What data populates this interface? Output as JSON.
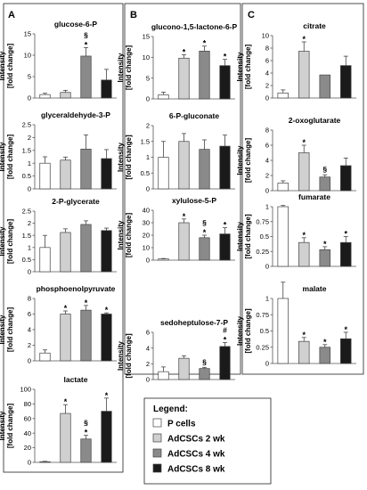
{
  "panels": [
    {
      "label": "A"
    },
    {
      "label": "B"
    },
    {
      "label": "C"
    }
  ],
  "ylabel_line1": "Intensity",
  "ylabel_line2": "[fold change]",
  "legend": {
    "title": "Legend:",
    "items": [
      {
        "label": "P cells",
        "color": "#ffffff"
      },
      {
        "label": "AdCSCs 2 wk",
        "color": "#d0d0d0"
      },
      {
        "label": "AdCSCs 4 wk",
        "color": "#8a8a8a"
      },
      {
        "label": "AdCSCs 8 wk",
        "color": "#1a1a1a"
      }
    ]
  },
  "chart_data": [
    {
      "type": "bar",
      "panel": "A",
      "title": "glucose-6-P",
      "ylim": [
        0,
        15
      ],
      "yticks": [
        0,
        5,
        10,
        15
      ],
      "values": [
        0.8,
        1.3,
        9.8,
        4.2
      ],
      "errors": [
        0.3,
        0.5,
        2.0,
        2.5
      ],
      "marks": [
        "",
        "",
        "§\n*",
        ""
      ]
    },
    {
      "type": "bar",
      "panel": "A",
      "title": "glyceraldehyde-3-P",
      "ylim": [
        0,
        2.5
      ],
      "yticks": [
        0,
        0.5,
        1,
        1.5,
        2,
        2.5
      ],
      "values": [
        1.0,
        1.12,
        1.55,
        1.18
      ],
      "errors": [
        0.25,
        0.12,
        0.55,
        0.35
      ],
      "marks": [
        "",
        "",
        "",
        ""
      ]
    },
    {
      "type": "bar",
      "panel": "A",
      "title": "2-P-glycerate",
      "ylim": [
        0,
        2.5
      ],
      "yticks": [
        0,
        0.5,
        1,
        1.5,
        2,
        2.5
      ],
      "values": [
        1.0,
        1.62,
        1.95,
        1.7
      ],
      "errors": [
        0.5,
        0.15,
        0.15,
        0.1
      ],
      "marks": [
        "",
        "",
        "",
        ""
      ]
    },
    {
      "type": "bar",
      "panel": "A",
      "title": "phosphoenolpyruvate",
      "ylim": [
        0,
        8
      ],
      "yticks": [
        0,
        2,
        4,
        6,
        8
      ],
      "values": [
        1.0,
        6.0,
        6.5,
        6.0
      ],
      "errors": [
        0.4,
        0.4,
        0.6,
        0.15
      ],
      "marks": [
        "",
        "*",
        "*",
        "*"
      ]
    },
    {
      "type": "bar",
      "panel": "A",
      "title": "lactate",
      "ylim": [
        0,
        100
      ],
      "yticks": [
        0,
        20,
        40,
        60,
        80,
        100
      ],
      "values": [
        1,
        67,
        32,
        70
      ],
      "errors": [
        0.5,
        12,
        5,
        18
      ],
      "marks": [
        "",
        "*",
        "§\n*",
        "*"
      ]
    },
    {
      "type": "bar",
      "panel": "B",
      "title": "glucono-1,5-lactone-6-P",
      "ylim": [
        0,
        15
      ],
      "yticks": [
        0,
        5,
        10,
        15
      ],
      "values": [
        1.0,
        9.8,
        11.5,
        8.0
      ],
      "errors": [
        0.6,
        0.8,
        1.2,
        1.5
      ],
      "marks": [
        "",
        "*",
        "*",
        "*"
      ]
    },
    {
      "type": "bar",
      "panel": "B",
      "title": "6-P-gluconate",
      "ylim": [
        0,
        2
      ],
      "yticks": [
        0,
        0.5,
        1,
        1.5,
        2
      ],
      "values": [
        1.0,
        1.5,
        1.25,
        1.35
      ],
      "errors": [
        0.5,
        0.25,
        0.3,
        0.35
      ],
      "marks": [
        "",
        "",
        "",
        ""
      ]
    },
    {
      "type": "bar",
      "panel": "B",
      "title": "xylulose-5-P",
      "ylim": [
        0,
        40
      ],
      "yticks": [
        0,
        10,
        20,
        30,
        40
      ],
      "values": [
        1,
        30,
        18,
        21
      ],
      "errors": [
        0.3,
        3,
        2,
        5
      ],
      "marks": [
        "",
        "*",
        "§\n*",
        "*"
      ]
    },
    {
      "type": "bar",
      "panel": "B",
      "title": "sedoheptulose-7-P",
      "ylim": [
        0,
        6
      ],
      "yticks": [
        0,
        2,
        4,
        6
      ],
      "values": [
        1.0,
        2.7,
        1.4,
        4.2
      ],
      "errors": [
        0.6,
        0.3,
        0.15,
        0.5
      ],
      "marks": [
        "",
        "",
        "§",
        "#\n*"
      ]
    },
    {
      "type": "bar",
      "panel": "C",
      "title": "citrate",
      "ylim": [
        0,
        10
      ],
      "yticks": [
        0,
        2,
        4,
        6,
        8,
        10
      ],
      "values": [
        0.8,
        7.5,
        3.7,
        5.2
      ],
      "errors": [
        0.5,
        1.5,
        0,
        1.5
      ],
      "marks": [
        "",
        "*",
        "",
        ""
      ]
    },
    {
      "type": "bar",
      "panel": "C",
      "title": "2-oxoglutarate",
      "ylim": [
        0,
        8
      ],
      "yticks": [
        0,
        2,
        4,
        6,
        8
      ],
      "values": [
        1.0,
        5.0,
        1.8,
        3.3
      ],
      "errors": [
        0.3,
        1.0,
        0.3,
        1.0
      ],
      "marks": [
        "",
        "*",
        "§",
        ""
      ]
    },
    {
      "type": "bar",
      "panel": "C",
      "title": "fumarate",
      "ylim": [
        0,
        1
      ],
      "yticks": [
        0,
        0.25,
        0.5,
        0.75,
        1
      ],
      "values": [
        1.0,
        0.4,
        0.28,
        0.4
      ],
      "errors": [
        0.02,
        0.08,
        0.05,
        0.1
      ],
      "marks": [
        "",
        "*",
        "*",
        "*"
      ]
    },
    {
      "type": "bar",
      "panel": "C",
      "title": "malate",
      "ylim": [
        0,
        1
      ],
      "yticks": [
        0,
        0.25,
        0.5,
        0.75,
        1
      ],
      "values": [
        1.0,
        0.34,
        0.25,
        0.38
      ],
      "errors": [
        0.25,
        0.06,
        0.04,
        0.1
      ],
      "marks": [
        "",
        "*",
        "*",
        "*"
      ]
    }
  ]
}
